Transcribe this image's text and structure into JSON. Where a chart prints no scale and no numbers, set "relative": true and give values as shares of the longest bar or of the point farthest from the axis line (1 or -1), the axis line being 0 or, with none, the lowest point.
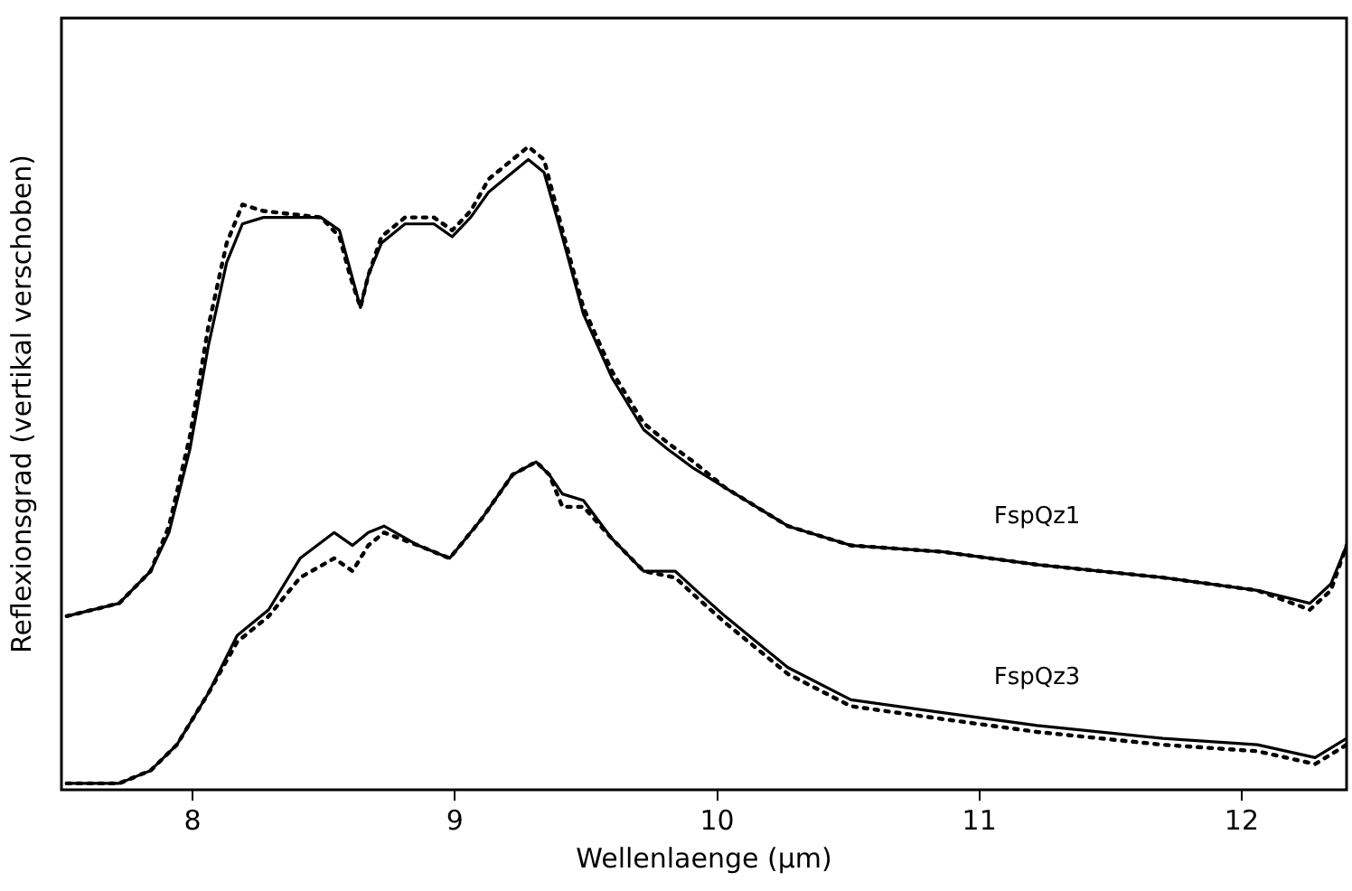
{
  "chart_data": {
    "type": "line",
    "xlabel": "Wellenlaenge (µm)",
    "ylabel": "Reflexionsgrad (vertikal verschoben)",
    "relative": true,
    "xlim": [
      7.5,
      12.4
    ],
    "xticks": [
      8,
      9,
      10,
      11,
      12
    ],
    "grid": false,
    "legend": false,
    "marker": "none",
    "series": [
      {
        "name": "FspQz1",
        "color": "#000000",
        "line_style": "solid",
        "x": [
          7.52,
          7.72,
          7.84,
          7.91,
          7.99,
          8.06,
          8.13,
          8.19,
          8.27,
          8.49,
          8.56,
          8.6,
          8.64,
          8.67,
          8.72,
          8.81,
          8.92,
          8.99,
          9.06,
          9.13,
          9.28,
          9.34,
          9.41,
          9.49,
          9.6,
          9.72,
          9.81,
          9.91,
          10.03,
          10.27,
          10.51,
          10.86,
          11.22,
          11.7,
          12.06,
          12.26,
          12.34,
          12.4
        ],
        "values": [
          0.27,
          0.29,
          0.34,
          0.4,
          0.53,
          0.69,
          0.82,
          0.88,
          0.89,
          0.89,
          0.87,
          0.81,
          0.75,
          0.8,
          0.85,
          0.88,
          0.88,
          0.86,
          0.89,
          0.93,
          0.98,
          0.96,
          0.86,
          0.74,
          0.64,
          0.56,
          0.53,
          0.5,
          0.47,
          0.41,
          0.38,
          0.37,
          0.35,
          0.33,
          0.31,
          0.29,
          0.32,
          0.38
        ]
      },
      {
        "color": "#000000",
        "line_style": "dotted",
        "x": [
          7.52,
          7.72,
          7.84,
          7.91,
          7.99,
          8.06,
          8.13,
          8.19,
          8.27,
          8.49,
          8.56,
          8.6,
          8.64,
          8.67,
          8.72,
          8.81,
          8.92,
          8.99,
          9.06,
          9.13,
          9.28,
          9.34,
          9.41,
          9.49,
          9.6,
          9.72,
          9.81,
          9.91,
          10.03,
          10.27,
          10.51,
          10.86,
          11.22,
          11.7,
          12.06,
          12.26,
          12.34,
          12.4
        ],
        "values": [
          0.27,
          0.29,
          0.34,
          0.41,
          0.55,
          0.72,
          0.85,
          0.91,
          0.9,
          0.89,
          0.86,
          0.8,
          0.75,
          0.8,
          0.86,
          0.89,
          0.89,
          0.87,
          0.9,
          0.95,
          1.0,
          0.98,
          0.87,
          0.75,
          0.65,
          0.57,
          0.54,
          0.51,
          0.47,
          0.41,
          0.38,
          0.37,
          0.35,
          0.33,
          0.31,
          0.28,
          0.31,
          0.38
        ]
      },
      {
        "name": "FspQz3",
        "color": "#000000",
        "line_style": "solid",
        "x": [
          7.52,
          7.72,
          7.84,
          7.94,
          8.06,
          8.17,
          8.29,
          8.41,
          8.54,
          8.61,
          8.67,
          8.73,
          8.86,
          8.98,
          9.1,
          9.22,
          9.31,
          9.36,
          9.41,
          9.49,
          9.6,
          9.72,
          9.84,
          9.92,
          10.03,
          10.27,
          10.51,
          10.86,
          11.22,
          11.7,
          12.06,
          12.28,
          12.4
        ],
        "values": [
          0.01,
          0.01,
          0.03,
          0.07,
          0.15,
          0.24,
          0.28,
          0.36,
          0.4,
          0.38,
          0.4,
          0.41,
          0.38,
          0.36,
          0.42,
          0.49,
          0.51,
          0.49,
          0.46,
          0.45,
          0.39,
          0.34,
          0.34,
          0.31,
          0.27,
          0.19,
          0.14,
          0.12,
          0.1,
          0.08,
          0.07,
          0.05,
          0.08
        ]
      },
      {
        "color": "#000000",
        "line_style": "dotted",
        "x": [
          7.52,
          7.72,
          7.84,
          7.94,
          8.06,
          8.17,
          8.29,
          8.41,
          8.54,
          8.61,
          8.67,
          8.73,
          8.86,
          8.98,
          9.1,
          9.22,
          9.31,
          9.36,
          9.41,
          9.49,
          9.6,
          9.72,
          9.84,
          9.92,
          10.03,
          10.27,
          10.51,
          10.86,
          11.22,
          11.7,
          12.06,
          12.28,
          12.4
        ],
        "values": [
          0.01,
          0.01,
          0.03,
          0.07,
          0.15,
          0.23,
          0.27,
          0.33,
          0.36,
          0.34,
          0.38,
          0.4,
          0.38,
          0.36,
          0.42,
          0.49,
          0.51,
          0.49,
          0.44,
          0.44,
          0.39,
          0.34,
          0.33,
          0.3,
          0.26,
          0.18,
          0.13,
          0.11,
          0.09,
          0.07,
          0.06,
          0.04,
          0.07
        ]
      }
    ]
  }
}
